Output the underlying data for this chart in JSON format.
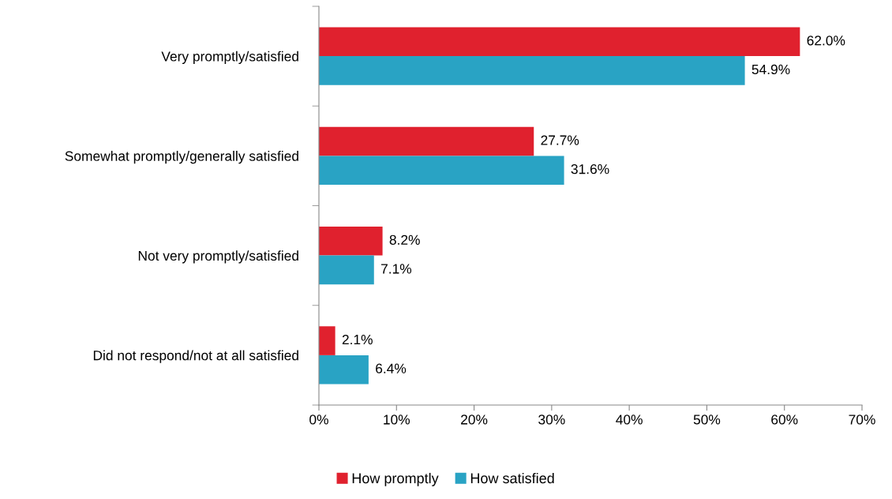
{
  "chart_data": {
    "type": "bar",
    "orientation": "horizontal",
    "categories": [
      "Very promptly/satisfied",
      "Somewhat promptly/generally satisfied",
      "Not very promptly/satisfied",
      "Did not respond/not at all satisfied"
    ],
    "series": [
      {
        "name": "How promptly",
        "color": "#e0212e",
        "values": [
          62.0,
          27.7,
          8.2,
          2.1
        ],
        "value_labels": [
          "62.0%",
          "27.7%",
          "8.2%",
          "2.1%"
        ]
      },
      {
        "name": "How satisfied",
        "color": "#29a3c4",
        "values": [
          54.9,
          31.6,
          7.1,
          6.4
        ],
        "value_labels": [
          "54.9%",
          "31.6%",
          "7.1%",
          "6.4%"
        ]
      }
    ],
    "xlim": [
      0,
      70
    ],
    "xticks": [
      {
        "value": 0,
        "label": "0%"
      },
      {
        "value": 10,
        "label": "10%"
      },
      {
        "value": 20,
        "label": "20%"
      },
      {
        "value": 30,
        "label": "30%"
      },
      {
        "value": 40,
        "label": "40%"
      },
      {
        "value": 50,
        "label": "50%"
      },
      {
        "value": 60,
        "label": "60%"
      },
      {
        "value": 70,
        "label": "70%"
      }
    ],
    "grid": false,
    "legend": "bottom"
  }
}
